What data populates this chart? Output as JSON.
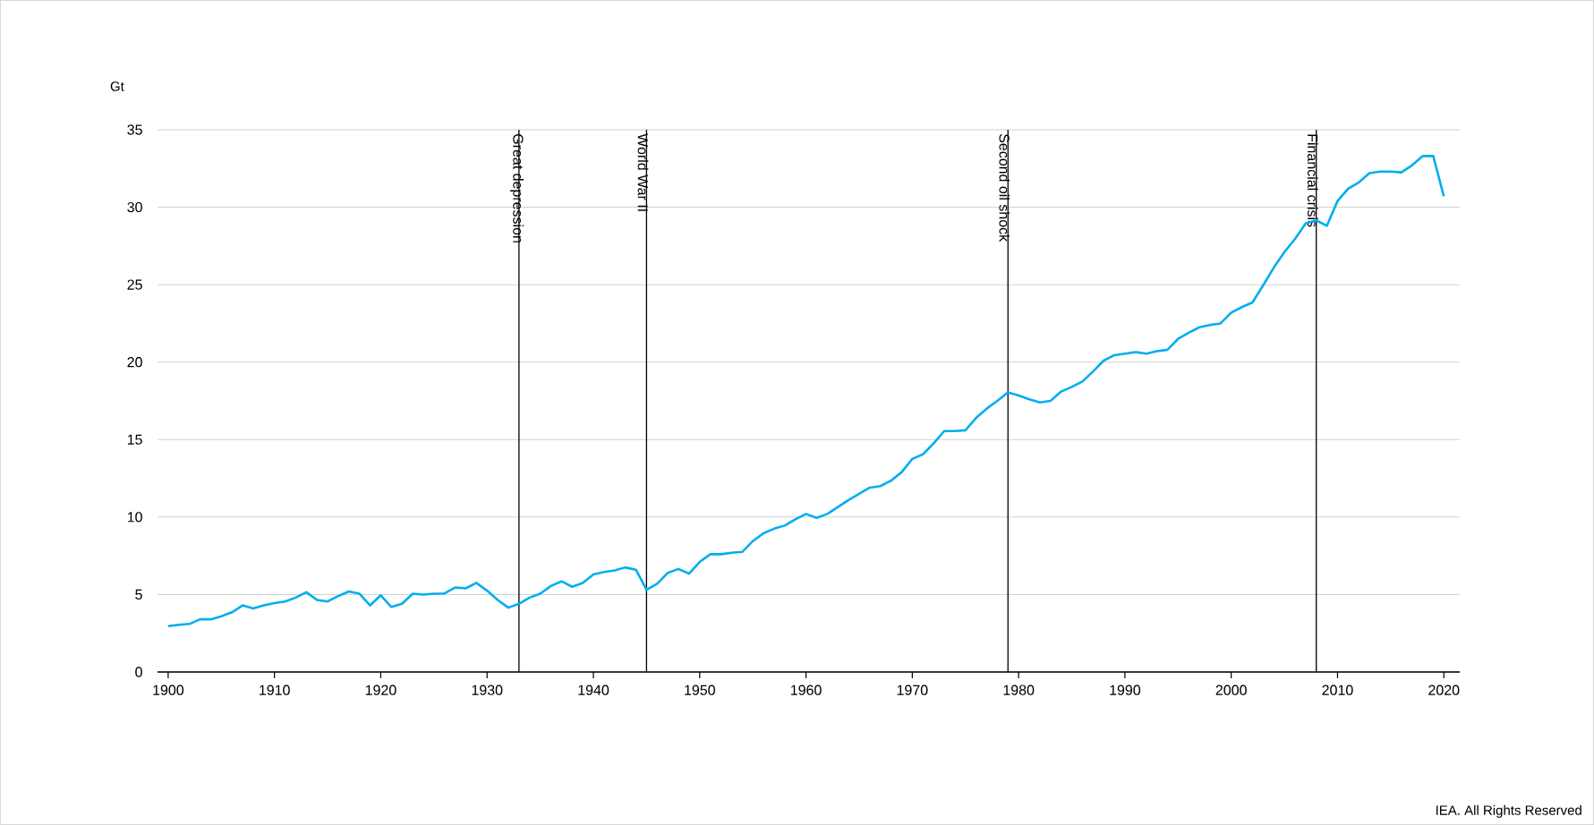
{
  "chart_data": {
    "type": "line",
    "ylabel": "Gt",
    "x": [
      1900,
      1901,
      1902,
      1903,
      1904,
      1905,
      1906,
      1907,
      1908,
      1909,
      1910,
      1911,
      1912,
      1913,
      1914,
      1915,
      1916,
      1917,
      1918,
      1919,
      1920,
      1921,
      1922,
      1923,
      1924,
      1925,
      1926,
      1927,
      1928,
      1929,
      1930,
      1931,
      1932,
      1933,
      1934,
      1935,
      1936,
      1937,
      1938,
      1939,
      1940,
      1941,
      1942,
      1943,
      1944,
      1945,
      1946,
      1947,
      1948,
      1949,
      1950,
      1951,
      1952,
      1953,
      1954,
      1955,
      1956,
      1957,
      1958,
      1959,
      1960,
      1961,
      1962,
      1963,
      1964,
      1965,
      1966,
      1967,
      1968,
      1969,
      1970,
      1971,
      1972,
      1973,
      1974,
      1975,
      1976,
      1977,
      1978,
      1979,
      1980,
      1981,
      1982,
      1983,
      1984,
      1985,
      1986,
      1987,
      1988,
      1989,
      1990,
      1991,
      1992,
      1993,
      1994,
      1995,
      1996,
      1997,
      1998,
      1999,
      2000,
      2001,
      2002,
      2003,
      2004,
      2005,
      2006,
      2007,
      2008,
      2009,
      2010,
      2011,
      2012,
      2013,
      2014,
      2015,
      2016,
      2017,
      2018,
      2019,
      2020
    ],
    "values": [
      2.96,
      3.05,
      3.1,
      3.4,
      3.4,
      3.6,
      3.85,
      4.3,
      4.1,
      4.3,
      4.45,
      4.55,
      4.8,
      5.15,
      4.65,
      4.55,
      4.9,
      5.2,
      5.05,
      4.3,
      4.95,
      4.2,
      4.4,
      5.05,
      5.0,
      5.05,
      5.07,
      5.45,
      5.4,
      5.75,
      5.25,
      4.65,
      4.15,
      4.4,
      4.8,
      5.05,
      5.55,
      5.85,
      5.5,
      5.75,
      6.3,
      6.45,
      6.55,
      6.75,
      6.6,
      5.3,
      5.7,
      6.4,
      6.65,
      6.35,
      7.1,
      7.6,
      7.6,
      7.7,
      7.75,
      8.45,
      8.95,
      9.25,
      9.45,
      9.85,
      10.2,
      9.95,
      10.2,
      10.65,
      11.1,
      11.5,
      11.9,
      12.0,
      12.35,
      12.9,
      13.75,
      14.05,
      14.75,
      15.55,
      15.55,
      15.6,
      16.4,
      17.0,
      17.5,
      18.05,
      17.85,
      17.6,
      17.4,
      17.5,
      18.1,
      18.4,
      18.75,
      19.4,
      20.1,
      20.45,
      20.55,
      20.65,
      20.55,
      20.7,
      20.8,
      21.5,
      21.9,
      22.25,
      22.4,
      22.5,
      23.2,
      23.55,
      23.85,
      24.95,
      26.1,
      27.1,
      27.95,
      28.95,
      29.15,
      28.8,
      30.4,
      31.2,
      31.6,
      32.2,
      32.3,
      32.3,
      32.25,
      32.7,
      33.3,
      33.3,
      30.7
    ],
    "color": "#00aeef",
    "xlim": [
      1899,
      2021.5
    ],
    "ylim": [
      0,
      35
    ],
    "xticks": [
      1900,
      1910,
      1920,
      1930,
      1940,
      1950,
      1960,
      1970,
      1980,
      1990,
      2000,
      2010,
      2020
    ],
    "yticks": [
      0,
      5,
      10,
      15,
      20,
      25,
      30,
      35
    ],
    "grid": "y",
    "ref_lines": [
      {
        "axis": "x",
        "value": 1933,
        "label": "Great depression",
        "color": "#000000"
      },
      {
        "axis": "x",
        "value": 1945,
        "label": "World War II",
        "color": "#000000"
      },
      {
        "axis": "x",
        "value": 1979,
        "label": "Second oil shock",
        "color": "#000000"
      },
      {
        "axis": "x",
        "value": 2008,
        "label": "Financial crisis",
        "color": "#000000"
      }
    ],
    "annotations": [
      "IEA. All Rights Reserved"
    ]
  }
}
